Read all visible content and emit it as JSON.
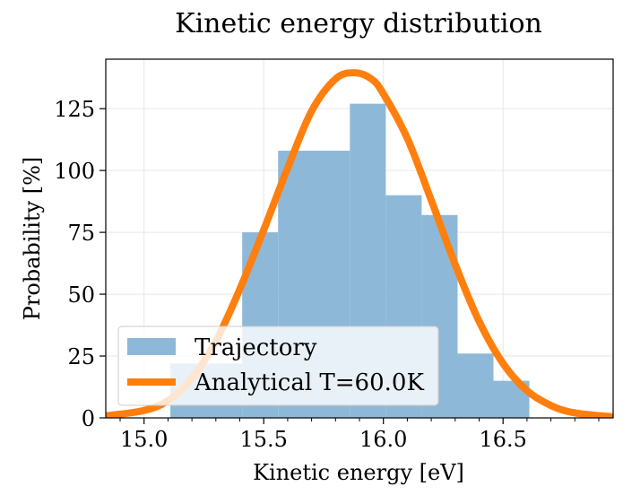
{
  "chart_data": {
    "type": "bar",
    "title": "Kinetic energy distribution",
    "xlabel": "Kinetic energy [eV]",
    "ylabel": "Probability [%]",
    "xlim": [
      14.84,
      16.96
    ],
    "ylim": [
      0,
      145
    ],
    "grid": true,
    "xticks": [
      15.0,
      15.5,
      16.0,
      16.5
    ],
    "xtick_labels": [
      "15.0",
      "15.5",
      "16.0",
      "16.5"
    ],
    "yticks": [
      0,
      25,
      50,
      75,
      100,
      125
    ],
    "ytick_labels": [
      "0",
      "25",
      "50",
      "75",
      "100",
      "125"
    ],
    "legend_position": "lower-left",
    "series": [
      {
        "name": "Trajectory",
        "kind": "histogram",
        "color": "#8eb8d8",
        "bins": [
          {
            "x0": 15.11,
            "x1": 15.41,
            "value": 22
          },
          {
            "x0": 15.41,
            "x1": 15.56,
            "value": 75
          },
          {
            "x0": 15.56,
            "x1": 15.86,
            "value": 108
          },
          {
            "x0": 15.86,
            "x1": 16.01,
            "value": 127
          },
          {
            "x0": 16.01,
            "x1": 16.16,
            "value": 90
          },
          {
            "x0": 16.16,
            "x1": 16.31,
            "value": 82
          },
          {
            "x0": 16.31,
            "x1": 16.46,
            "value": 26
          },
          {
            "x0": 16.46,
            "x1": 16.61,
            "value": 15
          }
        ]
      },
      {
        "name": "Analytical T=60.0K",
        "kind": "line",
        "color": "#ff7f0e",
        "x": [
          14.84,
          15.0,
          15.1,
          15.2,
          15.3,
          15.4,
          15.5,
          15.6,
          15.7,
          15.8,
          15.88,
          15.95,
          16.0,
          16.1,
          16.2,
          16.3,
          16.4,
          16.5,
          16.6,
          16.7,
          16.8,
          16.96
        ],
        "y": [
          0.8,
          3,
          7,
          16,
          31,
          52,
          76,
          101,
          124,
          137,
          139.5,
          137,
          131,
          113,
          88,
          62,
          39,
          22,
          11,
          5,
          2,
          0.4
        ]
      }
    ]
  }
}
